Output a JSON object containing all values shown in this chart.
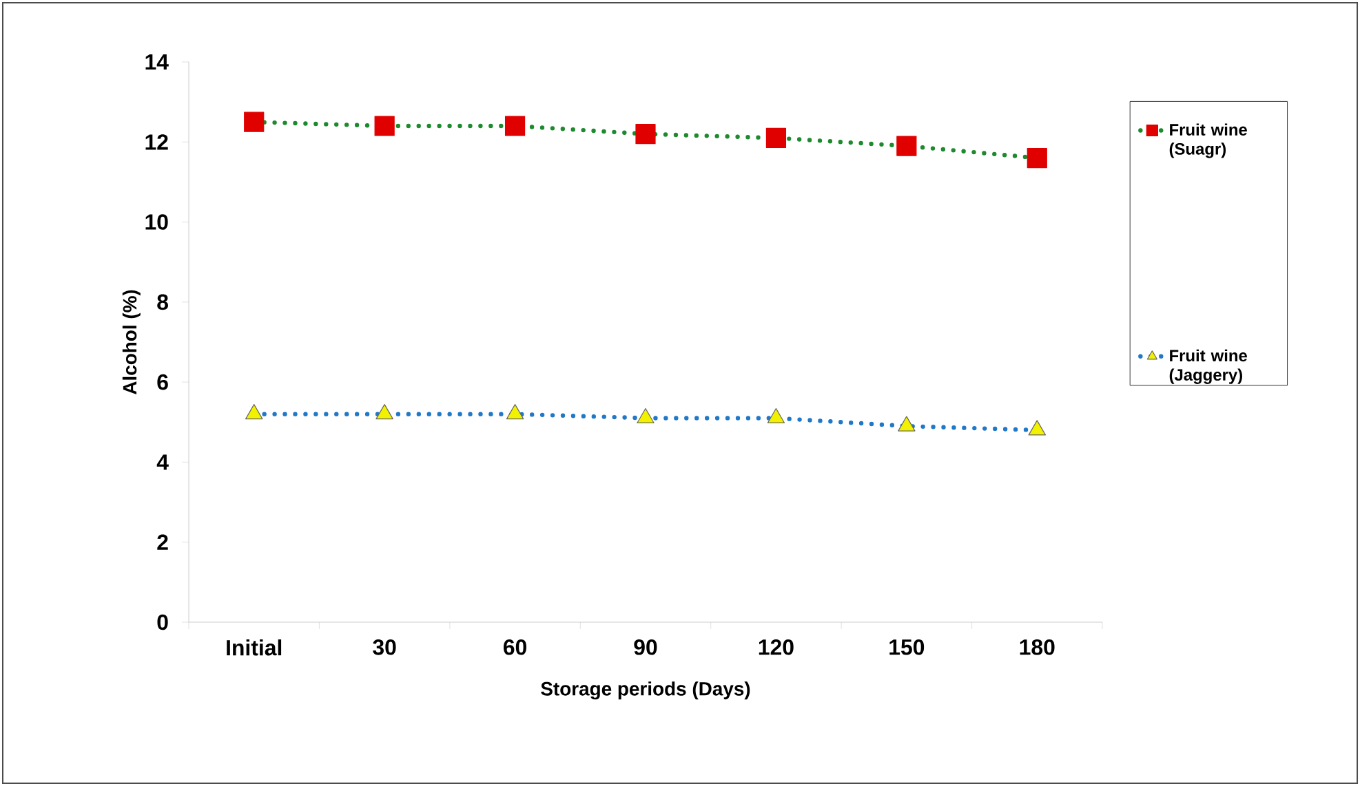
{
  "chart_data": {
    "type": "line",
    "xlabel": "Storage periods (Days)",
    "ylabel": "Alcohol (%)",
    "categories": [
      "Initial",
      "30",
      "60",
      "90",
      "120",
      "150",
      "180"
    ],
    "series": [
      {
        "name": "Fruit wine (Suagr)",
        "color": "#1e8a2e",
        "colors": [
          "#e00000",
          "#e00000",
          "#e00000",
          "#e00000",
          "#e00000",
          "#e00000",
          "#e00000"
        ],
        "marker": "square",
        "values": [
          12.5,
          12.4,
          12.4,
          12.2,
          12.1,
          11.9,
          11.6
        ]
      },
      {
        "name": "Fruit wine (Jaggery)",
        "color": "#1f78c8",
        "colors": [
          "#f2f200",
          "#f2f200",
          "#f2f200",
          "#f2f200",
          "#f2f200",
          "#f2f200",
          "#f2f200"
        ],
        "marker": "triangle",
        "values": [
          5.2,
          5.2,
          5.2,
          5.1,
          5.1,
          4.9,
          4.8
        ]
      }
    ],
    "ylim": [
      0,
      14
    ],
    "yticks": [
      0,
      2,
      4,
      6,
      8,
      10,
      12,
      14
    ],
    "grid": false,
    "legend": "right",
    "line_style": "dotted"
  }
}
